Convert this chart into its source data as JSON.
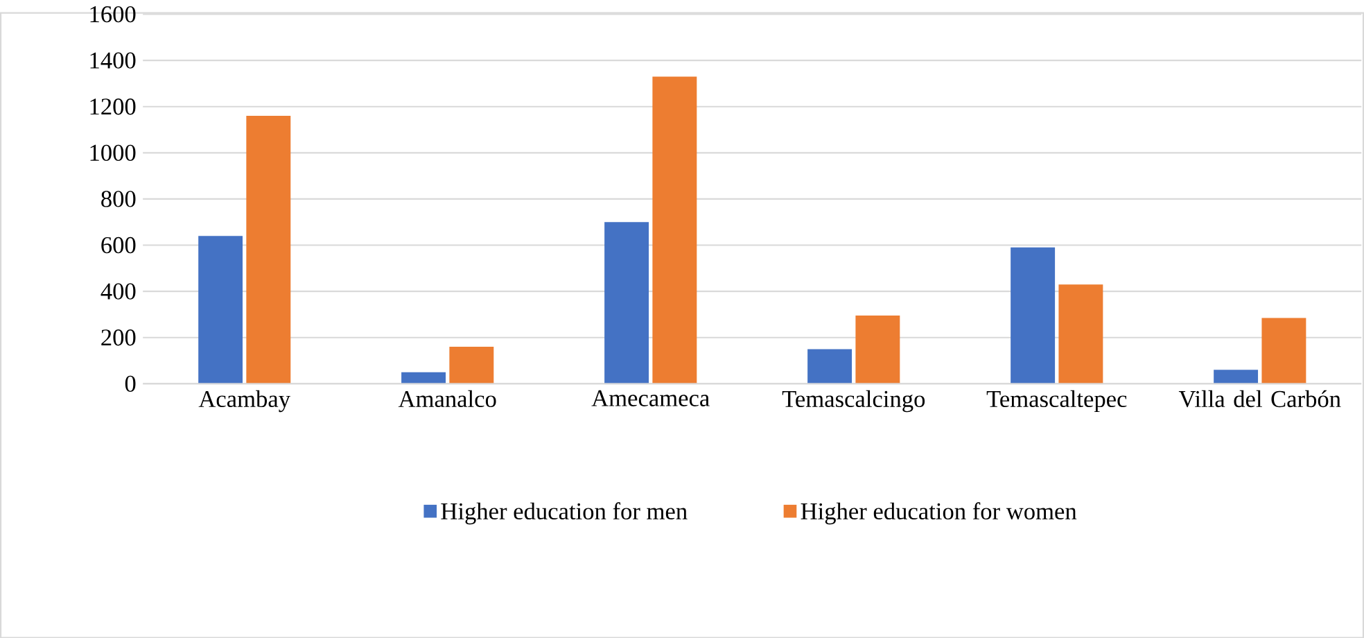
{
  "chart_data": {
    "type": "bar",
    "categories": [
      "Acambay",
      "Amanalco",
      "Amecameca",
      "Temascalcingo",
      "Temascaltepec",
      "Villa del Carbón"
    ],
    "series": [
      {
        "name": "Higher education for men",
        "color": "#4472c4",
        "values": [
          640,
          50,
          700,
          150,
          590,
          60
        ]
      },
      {
        "name": "Higher education for women",
        "color": "#ed7d31",
        "values": [
          1160,
          160,
          1330,
          295,
          430,
          285
        ]
      }
    ],
    "ylim": [
      0,
      1600
    ],
    "yticks": [
      0,
      200,
      400,
      600,
      800,
      1000,
      1200,
      1400,
      1600
    ],
    "grid": "y",
    "legend": "bottom"
  }
}
